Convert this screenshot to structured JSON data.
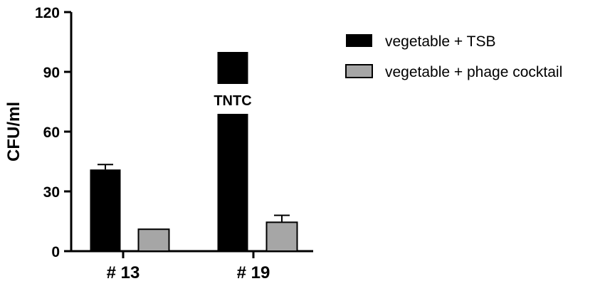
{
  "chart_data": {
    "type": "bar",
    "title": "",
    "xlabel": "",
    "ylabel": "CFU/ml",
    "ylim": [
      0,
      120
    ],
    "yticks": [
      0,
      30,
      60,
      90,
      120
    ],
    "categories": [
      "# 13",
      "# 19"
    ],
    "series": [
      {
        "name": "vegetable + TSB",
        "color": "#000000",
        "values": [
          41,
          100
        ],
        "errors": [
          2.5,
          null
        ]
      },
      {
        "name": "vegetable + phage cocktail",
        "color": "#a6a6a6",
        "values": [
          11,
          14.5
        ],
        "errors": [
          null,
          3.5
        ]
      }
    ],
    "annotations": [
      {
        "text": "TNTC",
        "category": "# 19",
        "series": "vegetable + TSB"
      }
    ],
    "legend": {
      "position": "top-right"
    },
    "grid": false
  }
}
